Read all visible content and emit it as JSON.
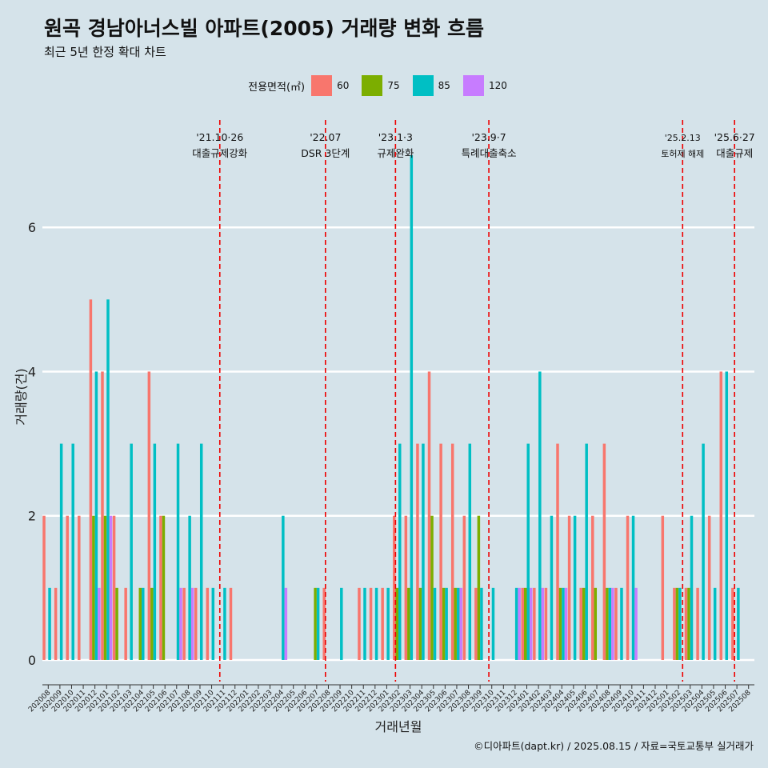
{
  "title": "원곡 경남아너스빌 아파트(2005) 거래량 변화 흐름",
  "subtitle": "최근 5년 한정 확대 차트",
  "caption": "©디아파트(dapt.kr) / 2025.08.15 / 자료=국토교통부 실거래가",
  "legend": {
    "title": "전용면적(㎡)",
    "items": [
      {
        "label": "60",
        "color": "#f8766d"
      },
      {
        "label": "75",
        "color": "#7cae00"
      },
      {
        "label": "85",
        "color": "#00bfc4"
      },
      {
        "label": "120",
        "color": "#c77cff"
      }
    ]
  },
  "chart_data": {
    "type": "bar",
    "title": "원곡 경남아너스빌 아파트(2005) 거래량 변화 흐름",
    "subtitle": "최근 5년 한정 확대 차트",
    "xlabel": "거래년월",
    "ylabel": "거래량(건)",
    "ylim": [
      -0.3,
      7.6
    ],
    "yticks": [
      0,
      2,
      4,
      6
    ],
    "categories": [
      "202008",
      "202009",
      "202010",
      "202011",
      "202012",
      "202101",
      "202102",
      "202103",
      "202104",
      "202105",
      "202106",
      "202107",
      "202108",
      "202109",
      "202110",
      "202111",
      "202112",
      "202201",
      "202202",
      "202203",
      "202204",
      "202205",
      "202206",
      "202207",
      "202208",
      "202209",
      "202210",
      "202211",
      "202212",
      "202301",
      "202302",
      "202303",
      "202304",
      "202305",
      "202306",
      "202307",
      "202308",
      "202309",
      "202310",
      "202311",
      "202312",
      "202401",
      "202402",
      "202403",
      "202404",
      "202405",
      "202406",
      "202407",
      "202408",
      "202409",
      "202410",
      "202411",
      "202412",
      "202501",
      "202502",
      "202503",
      "202504",
      "202505",
      "202506",
      "202507",
      "202508"
    ],
    "series": [
      {
        "name": "60",
        "color": "#f8766d",
        "values": [
          2,
          1,
          2,
          2,
          5,
          4,
          2,
          1,
          0,
          4,
          2,
          0,
          1,
          1,
          1,
          0,
          1,
          0,
          0,
          0,
          0,
          0,
          0,
          0,
          1,
          0,
          0,
          1,
          1,
          1,
          2,
          2,
          3,
          4,
          3,
          3,
          2,
          1,
          0,
          0,
          0,
          1,
          1,
          1,
          3,
          2,
          1,
          2,
          3,
          1,
          2,
          0,
          0,
          2,
          1,
          1,
          1,
          2,
          4,
          1,
          0
        ]
      },
      {
        "name": "75",
        "color": "#7cae00",
        "values": [
          0,
          0,
          0,
          0,
          2,
          2,
          1,
          0,
          1,
          1,
          2,
          0,
          0,
          0,
          0,
          0,
          0,
          0,
          0,
          0,
          0,
          0,
          0,
          1,
          0,
          0,
          0,
          0,
          0,
          0,
          1,
          1,
          1,
          2,
          1,
          1,
          0,
          2,
          0,
          0,
          0,
          1,
          0,
          0,
          1,
          0,
          1,
          1,
          1,
          0,
          0,
          0,
          0,
          0,
          1,
          1,
          0,
          0,
          0,
          0,
          0
        ]
      },
      {
        "name": "85",
        "color": "#00bfc4",
        "values": [
          1,
          3,
          3,
          0,
          4,
          5,
          0,
          3,
          1,
          3,
          0,
          3,
          2,
          3,
          1,
          1,
          0,
          0,
          0,
          0,
          2,
          0,
          0,
          1,
          0,
          1,
          0,
          1,
          1,
          1,
          3,
          7,
          3,
          1,
          1,
          1,
          3,
          1,
          1,
          0,
          1,
          3,
          4,
          2,
          1,
          2,
          3,
          0,
          1,
          1,
          2,
          0,
          0,
          0,
          1,
          2,
          3,
          1,
          4,
          1,
          0
        ]
      },
      {
        "name": "120",
        "color": "#c77cff",
        "values": [
          0,
          0,
          0,
          0,
          1,
          2,
          0,
          0,
          0,
          0,
          0,
          1,
          1,
          0,
          0,
          0,
          0,
          0,
          0,
          0,
          1,
          0,
          0,
          0,
          0,
          0,
          0,
          0,
          0,
          0,
          0,
          0,
          0,
          0,
          0,
          1,
          0,
          0,
          0,
          0,
          1,
          1,
          1,
          0,
          1,
          0,
          0,
          0,
          1,
          0,
          1,
          0,
          0,
          0,
          0,
          0,
          0,
          0,
          0,
          0,
          0
        ]
      }
    ],
    "events": [
      {
        "index": 14.7,
        "date": "'21.10·26",
        "label": "대출규제강화"
      },
      {
        "index": 23.75,
        "date": "'22.07",
        "label": "DSR 3단계"
      },
      {
        "index": 29.75,
        "date": "'23.1·3",
        "label": "규제완화"
      },
      {
        "index": 37.75,
        "date": "'23.9·7",
        "label": "특례대출축소"
      },
      {
        "index": 54.35,
        "date": "'25.2.13",
        "label": "토허제 해제"
      },
      {
        "index": 58.8,
        "date": "'25.6·27",
        "label": "대출규제"
      }
    ]
  }
}
